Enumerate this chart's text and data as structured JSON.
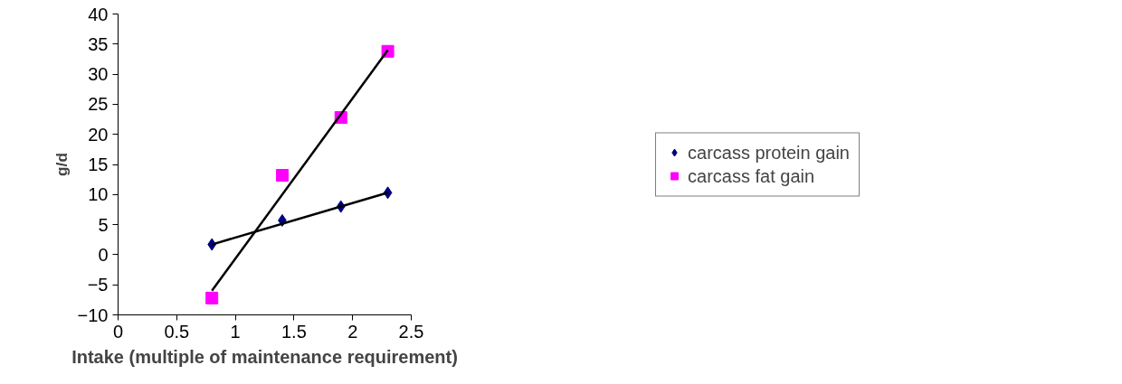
{
  "chart_data": {
    "type": "scatter",
    "xlabel": "Intake (multiple of maintenance requirement)",
    "ylabel": "g/d",
    "xlim": [
      0,
      2.5
    ],
    "xticks": [
      0,
      0.5,
      1,
      1.5,
      2,
      2.5
    ],
    "ylim": [
      -10,
      40
    ],
    "yticks": [
      -10,
      -5,
      0,
      5,
      10,
      15,
      20,
      25,
      30,
      35,
      40
    ],
    "grid": false,
    "legend": "right",
    "series": [
      {
        "name": "carcass protein gain",
        "color": "#000080",
        "marker": "diamond",
        "x": [
          0.8,
          1.4,
          1.9,
          2.3
        ],
        "values": [
          1.7,
          5.7,
          8.0,
          10.3
        ]
      },
      {
        "name": "carcass fat gain",
        "color": "#ff00ff",
        "marker": "square",
        "x": [
          0.8,
          1.4,
          1.9,
          2.3
        ],
        "values": [
          -7.2,
          13.2,
          22.8,
          33.8
        ]
      },
      {
        "type": "line",
        "color": "#000000",
        "marker": "none",
        "x": [
          0.8,
          2.3
        ],
        "values": [
          1.7,
          10.3
        ]
      },
      {
        "type": "line",
        "color": "#000000",
        "marker": "none",
        "x": [
          0.8,
          2.3
        ],
        "values": [
          -6.0,
          34.0
        ]
      }
    ]
  }
}
